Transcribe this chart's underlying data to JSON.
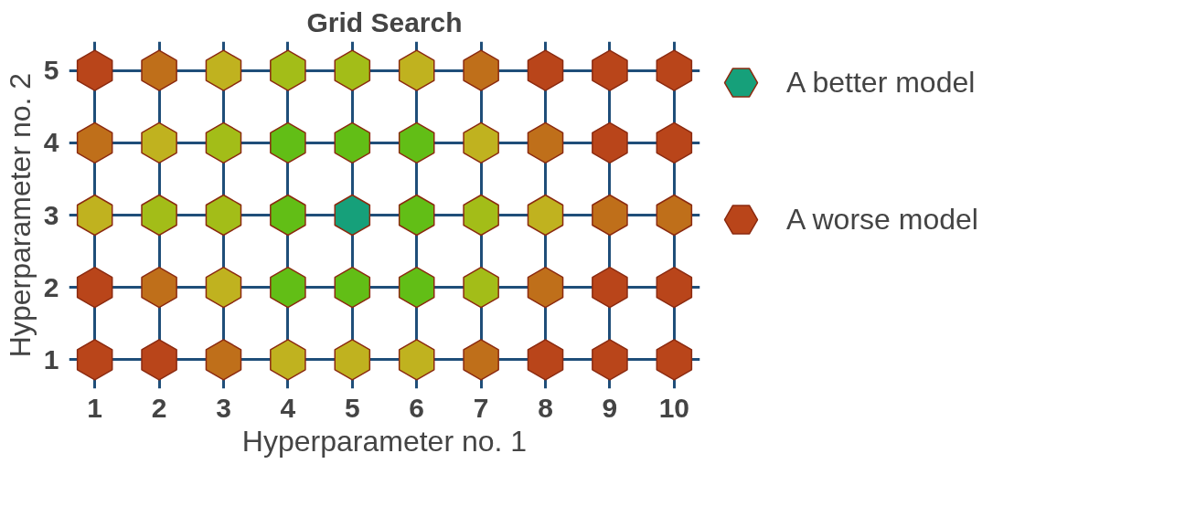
{
  "chart_data": {
    "type": "scatter",
    "title": "Grid Search",
    "xlabel": "Hyperparameter no. 1",
    "ylabel": "Hyperparameter no. 2",
    "xlim": [
      0.6,
      10.4
    ],
    "ylim": [
      0.6,
      5.4
    ],
    "xticks": [
      1,
      2,
      3,
      4,
      5,
      6,
      7,
      8,
      9,
      10
    ],
    "yticks": [
      1,
      2,
      3,
      4,
      5
    ],
    "grid": true,
    "legend": "right",
    "series": [
      {
        "name": "A better model",
        "color": "#16a07a",
        "x": [
          5
        ],
        "values": [
          3
        ]
      },
      {
        "name": "A worse model",
        "color": "#b9451a",
        "x": [
          1,
          8,
          9,
          10,
          9,
          10,
          1,
          9,
          10,
          1,
          2,
          8,
          9,
          10
        ],
        "values": [
          5,
          5,
          5,
          5,
          4,
          4,
          2,
          2,
          2,
          1,
          1,
          1,
          1,
          1
        ]
      },
      {
        "color": "#bf6f1a",
        "x": [
          2,
          7,
          1,
          8,
          9,
          10,
          2,
          8,
          3,
          7
        ],
        "values": [
          5,
          5,
          4,
          4,
          3,
          3,
          2,
          2,
          1,
          1
        ]
      },
      {
        "color": "#c0b21f",
        "x": [
          3,
          6,
          2,
          7,
          1,
          8,
          3,
          4,
          5,
          6
        ],
        "values": [
          5,
          5,
          4,
          4,
          3,
          3,
          2,
          1,
          1,
          1
        ]
      },
      {
        "color": "#a3bd18",
        "x": [
          4,
          5,
          3,
          2,
          3,
          7,
          7
        ],
        "values": [
          5,
          5,
          4,
          3,
          3,
          3,
          2
        ]
      },
      {
        "color": "#62be16",
        "x": [
          4,
          5,
          6,
          4,
          6,
          4,
          5,
          6
        ],
        "values": [
          4,
          4,
          4,
          3,
          3,
          2,
          2,
          2
        ]
      }
    ]
  }
}
